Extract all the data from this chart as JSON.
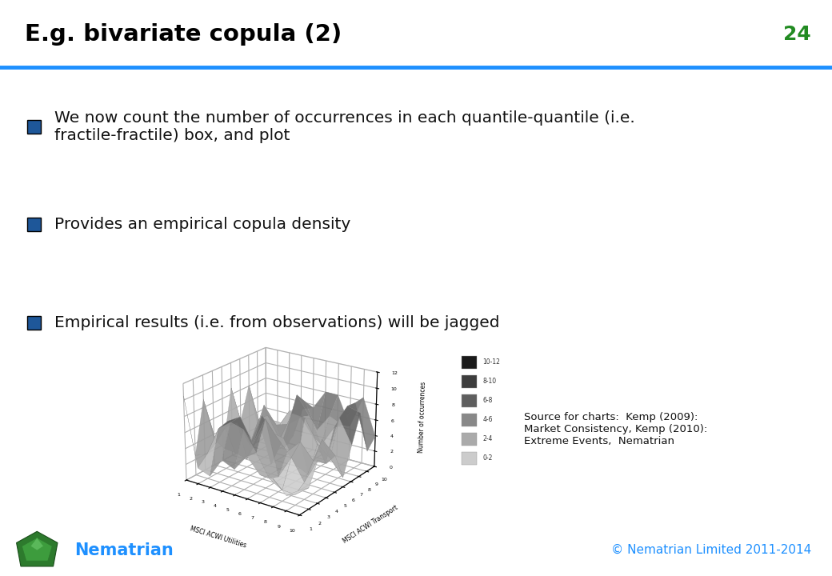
{
  "title": "E.g. bivariate copula (2)",
  "slide_number": "24",
  "bullet_points": [
    "We now count the number of occurrences in each quantile-quantile (i.e.\nfractile-fractile) box, and plot",
    "Provides an empirical copula density",
    "Empirical results (i.e. from observations) will be jagged"
  ],
  "chart_xlabel": "MSCI ACWI Utilities",
  "chart_ylabel": "MSCI ACWI Transport",
  "chart_zlabel": "Number of occurrences",
  "legend_labels": [
    "10-12",
    "8-10",
    "6-8",
    "4-6",
    "2-4",
    "0-2"
  ],
  "source_text": "Source for charts:  Kemp (2009):\nMarket Consistency, Kemp (2010):\nExtreme Events,  Nematrian",
  "footer_left": "Nematrian",
  "footer_right": "© Nematrian Limited 2011-2014",
  "title_color": "#000000",
  "title_line_color": "#1E90FF",
  "slide_number_color": "#228B22",
  "bullet_color": "#1E5799",
  "footer_color": "#1E90FF",
  "background_color": "#FFFFFF",
  "n_quantiles": 10,
  "zlim": [
    0,
    12
  ],
  "zticks": [
    0,
    2,
    4,
    6,
    8,
    10,
    12
  ],
  "legend_colors": [
    "#1a1a1a",
    "#3d3d3d",
    "#5e5e5e",
    "#888888",
    "#aaaaaa",
    "#cccccc"
  ]
}
